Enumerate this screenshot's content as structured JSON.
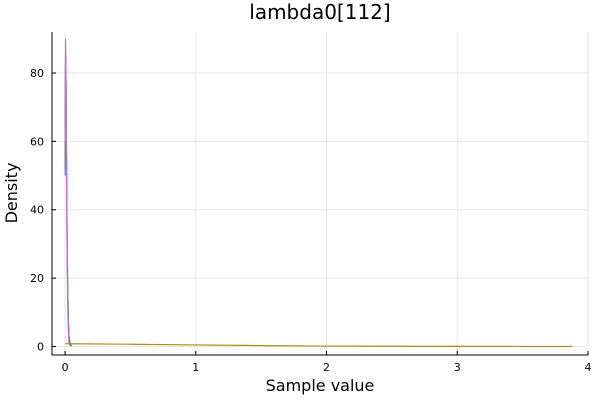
{
  "chart_data": {
    "type": "line",
    "title": "lambda0[112]",
    "xlabel": "Sample value",
    "ylabel": "Density",
    "xlim": [
      -0.1,
      4.0
    ],
    "ylim": [
      -2.5,
      92
    ],
    "xticks": [
      0,
      1,
      2,
      3,
      4
    ],
    "yticks": [
      0,
      20,
      40,
      60,
      80
    ],
    "xtick_labels": [
      "0",
      "1",
      "2",
      "3",
      "4"
    ],
    "ytick_labels": [
      "0",
      "20",
      "40",
      "60",
      "80"
    ],
    "grid": true,
    "legend": "none",
    "series": [
      {
        "color": "#009af9",
        "x": [
          0.001,
          0.002,
          0.004,
          0.007,
          0.01,
          0.015,
          0.02,
          0.025,
          0.03,
          0.04,
          0.05
        ],
        "y": [
          50,
          70,
          85,
          78,
          60,
          35,
          18,
          8,
          3,
          0.8,
          0.1
        ]
      },
      {
        "color": "#e26f46",
        "x": [
          0.001,
          0.002,
          0.004,
          0.007,
          0.01,
          0.015,
          0.02,
          0.025,
          0.03,
          0.04,
          0.05
        ],
        "y": [
          55,
          72,
          84,
          76,
          58,
          34,
          17,
          7,
          2.5,
          0.6,
          0.1
        ]
      },
      {
        "color": "#3da44d",
        "x": [
          0.001,
          0.002,
          0.004,
          0.007,
          0.01,
          0.015,
          0.02,
          0.025,
          0.03,
          0.04,
          0.05
        ],
        "y": [
          52,
          71,
          86,
          77,
          59,
          33,
          16,
          7,
          2.8,
          0.7,
          0.1
        ]
      },
      {
        "color": "#c271d2",
        "x": [
          0.001,
          0.002,
          0.004,
          0.007,
          0.01,
          0.015,
          0.02,
          0.025,
          0.03,
          0.04
        ],
        "y": [
          60,
          80,
          90,
          80,
          58,
          30,
          12,
          4,
          1,
          0.1
        ]
      },
      {
        "color": "#ac8d18",
        "x": [
          0.0,
          0.5,
          1.0,
          1.5,
          2.0,
          2.5,
          3.0,
          3.5,
          3.88
        ],
        "y": [
          0.8,
          0.65,
          0.45,
          0.25,
          0.12,
          0.06,
          0.03,
          0.01,
          0.005
        ]
      }
    ]
  }
}
